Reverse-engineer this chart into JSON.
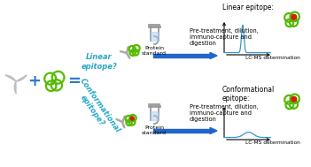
{
  "bg_color": "#ffffff",
  "text_color": "#000000",
  "cyan_text_color": "#29a8c7",
  "green_color": "#55bb00",
  "red_color": "#cc2200",
  "gray_color": "#aaaaaa",
  "blue_arrow_color": "#2266cc",
  "lc_line_color": "#3399cc",
  "linear_epitope_label": "Linear epitope:",
  "conformational_epitope_label": "Conformational\nepitope:",
  "pretreatment_text": "Pre-treatment, dilution,\nimmuno­capture and\ndigestion",
  "protein_standard_text": "Protein\nstandard",
  "linear_epitope_q": "Linear\nepitope?",
  "conformational_epitope_q": "Conformational\nepitope?",
  "lc_ms_label": "LC-MS determination",
  "plus_sign": "+",
  "equals_sign": "="
}
